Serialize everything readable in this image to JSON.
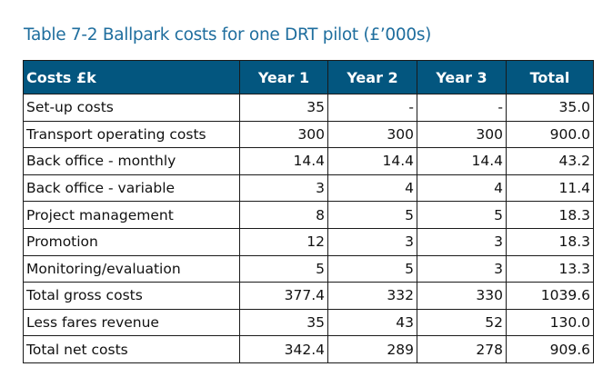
{
  "title": "Table 7-2 Ballpark costs for one DRT pilot (£’000s)",
  "colors": {
    "title": "#1f6e9e",
    "header_bg": "#03567f",
    "header_text": "#ffffff"
  },
  "table": {
    "headers": [
      "Costs £k",
      "Year 1",
      "Year 2",
      "Year 3",
      "Total"
    ],
    "rows": [
      [
        "Set-up costs",
        "35",
        "-",
        "-",
        "35.0"
      ],
      [
        "Transport operating costs",
        "300",
        "300",
        "300",
        "900.0"
      ],
      [
        "Back office - monthly",
        "14.4",
        "14.4",
        "14.4",
        "43.2"
      ],
      [
        "Back office - variable",
        "3",
        "4",
        "4",
        "11.4"
      ],
      [
        "Project management",
        "8",
        "5",
        "5",
        "18.3"
      ],
      [
        "Promotion",
        "12",
        "3",
        "3",
        "18.3"
      ],
      [
        "Monitoring/evaluation",
        "5",
        "5",
        "3",
        "13.3"
      ],
      [
        "Total gross costs",
        "377.4",
        "332",
        "330",
        "1039.6"
      ],
      [
        "Less fares revenue",
        "35",
        "43",
        "52",
        "130.0"
      ],
      [
        "Total net costs",
        "342.4",
        "289",
        "278",
        "909.6"
      ]
    ]
  }
}
